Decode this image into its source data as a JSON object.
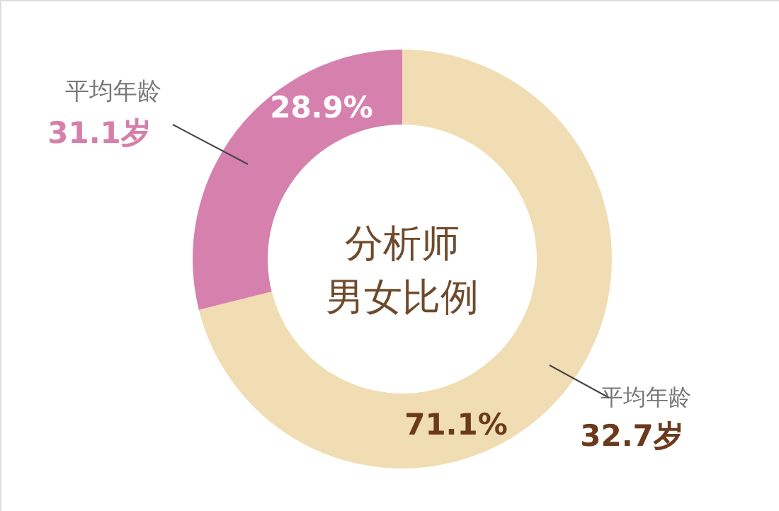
{
  "chart_data": {
    "type": "donut",
    "title": "分析师",
    "subtitle": "男女比例",
    "categories": [
      null,
      null
    ],
    "values": [
      71.1,
      28.9
    ],
    "colors": [
      "#f1ddb3",
      "#d680ad"
    ],
    "value_labels": [
      "71.1%",
      "28.9%"
    ],
    "annotations": [
      "平均年龄",
      "31.1岁",
      "平均年龄",
      "32.7岁"
    ]
  }
}
